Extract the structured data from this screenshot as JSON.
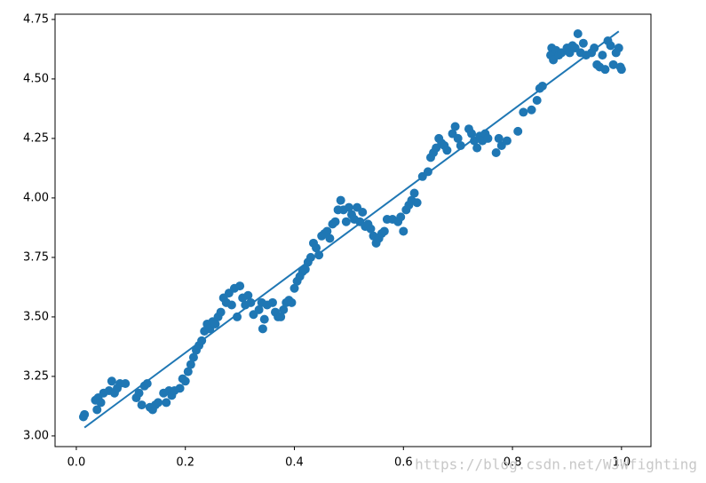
{
  "chart_data": {
    "type": "scatter",
    "xlim": [
      -0.039,
      1.054
    ],
    "ylim": [
      2.955,
      4.772
    ],
    "xticks": [
      {
        "value": 0,
        "label": "0.0"
      },
      0.2,
      0.4,
      0.6,
      0.8,
      {
        "value": 1,
        "label": "1.0"
      }
    ],
    "yticks": [
      {
        "value": 3,
        "label": "3.00"
      },
      3.25,
      {
        "value": 3.5,
        "label": "3.50"
      },
      3.75,
      {
        "value": 4,
        "label": "4.00"
      },
      4.25,
      {
        "value": 4.5,
        "label": "4.50"
      },
      4.75
    ],
    "grid": false,
    "watermark": "https://blog.csdn.net/WJWfighting",
    "series": [
      {
        "type": "scatter",
        "color": "#1f77b4",
        "x": [
          0.013,
          0.015,
          0.035,
          0.038,
          0.04,
          0.045,
          0.05,
          0.06,
          0.065,
          0.07,
          0.075,
          0.08,
          0.09,
          0.11,
          0.115,
          0.12,
          0.125,
          0.13,
          0.135,
          0.14,
          0.145,
          0.15,
          0.16,
          0.165,
          0.17,
          0.175,
          0.18,
          0.19,
          0.195,
          0.2,
          0.205,
          0.21,
          0.215,
          0.22,
          0.225,
          0.23,
          0.235,
          0.24,
          0.245,
          0.25,
          0.255,
          0.26,
          0.265,
          0.27,
          0.275,
          0.28,
          0.285,
          0.29,
          0.295,
          0.3,
          0.305,
          0.31,
          0.315,
          0.32,
          0.325,
          0.335,
          0.34,
          0.342,
          0.345,
          0.35,
          0.36,
          0.365,
          0.37,
          0.375,
          0.38,
          0.385,
          0.39,
          0.395,
          0.4,
          0.405,
          0.41,
          0.415,
          0.42,
          0.425,
          0.43,
          0.435,
          0.44,
          0.445,
          0.45,
          0.455,
          0.46,
          0.465,
          0.47,
          0.475,
          0.48,
          0.485,
          0.49,
          0.495,
          0.5,
          0.505,
          0.51,
          0.515,
          0.52,
          0.525,
          0.53,
          0.535,
          0.54,
          0.545,
          0.55,
          0.555,
          0.56,
          0.565,
          0.57,
          0.58,
          0.59,
          0.595,
          0.6,
          0.605,
          0.61,
          0.615,
          0.62,
          0.625,
          0.635,
          0.645,
          0.65,
          0.655,
          0.66,
          0.665,
          0.67,
          0.675,
          0.68,
          0.69,
          0.695,
          0.7,
          0.705,
          0.72,
          0.725,
          0.73,
          0.735,
          0.74,
          0.745,
          0.75,
          0.755,
          0.77,
          0.775,
          0.78,
          0.79,
          0.81,
          0.82,
          0.835,
          0.845,
          0.85,
          0.855,
          0.87,
          0.872,
          0.875,
          0.88,
          0.885,
          0.89,
          0.9,
          0.905,
          0.91,
          0.915,
          0.92,
          0.925,
          0.93,
          0.935,
          0.945,
          0.95,
          0.955,
          0.96,
          0.965,
          0.97,
          0.975,
          0.98,
          0.985,
          0.99,
          0.995,
          1.0,
          0.998
        ],
        "values": [
          3.08,
          3.09,
          3.15,
          3.11,
          3.16,
          3.14,
          3.18,
          3.19,
          3.23,
          3.18,
          3.2,
          3.22,
          3.22,
          3.16,
          3.18,
          3.13,
          3.21,
          3.22,
          3.12,
          3.11,
          3.13,
          3.14,
          3.18,
          3.14,
          3.19,
          3.17,
          3.19,
          3.2,
          3.24,
          3.23,
          3.27,
          3.3,
          3.33,
          3.36,
          3.38,
          3.4,
          3.44,
          3.47,
          3.45,
          3.48,
          3.47,
          3.5,
          3.52,
          3.58,
          3.56,
          3.6,
          3.55,
          3.62,
          3.5,
          3.63,
          3.58,
          3.55,
          3.59,
          3.56,
          3.51,
          3.53,
          3.56,
          3.45,
          3.49,
          3.55,
          3.56,
          3.52,
          3.5,
          3.5,
          3.53,
          3.56,
          3.57,
          3.56,
          3.62,
          3.65,
          3.67,
          3.69,
          3.7,
          3.73,
          3.75,
          3.81,
          3.79,
          3.76,
          3.84,
          3.85,
          3.86,
          3.83,
          3.89,
          3.9,
          3.95,
          3.99,
          3.95,
          3.9,
          3.96,
          3.93,
          3.91,
          3.96,
          3.9,
          3.94,
          3.88,
          3.89,
          3.87,
          3.84,
          3.81,
          3.83,
          3.85,
          3.86,
          3.91,
          3.91,
          3.9,
          3.92,
          3.86,
          3.95,
          3.97,
          3.99,
          4.02,
          3.98,
          4.09,
          4.11,
          4.17,
          4.19,
          4.21,
          4.25,
          4.23,
          4.22,
          4.2,
          4.27,
          4.3,
          4.25,
          4.22,
          4.29,
          4.27,
          4.24,
          4.21,
          4.26,
          4.24,
          4.27,
          4.25,
          4.19,
          4.25,
          4.22,
          4.24,
          4.28,
          4.36,
          4.37,
          4.41,
          4.46,
          4.47,
          4.6,
          4.63,
          4.58,
          4.62,
          4.6,
          4.61,
          4.63,
          4.61,
          4.64,
          4.63,
          4.69,
          4.61,
          4.65,
          4.6,
          4.61,
          4.63,
          4.56,
          4.55,
          4.6,
          4.54,
          4.66,
          4.64,
          4.56,
          4.61,
          4.63,
          4.54,
          4.55
        ]
      },
      {
        "type": "line",
        "color": "#1f77b4",
        "x": [
          0.015,
          0.995
        ],
        "values": [
          3.035,
          4.7
        ]
      }
    ]
  }
}
